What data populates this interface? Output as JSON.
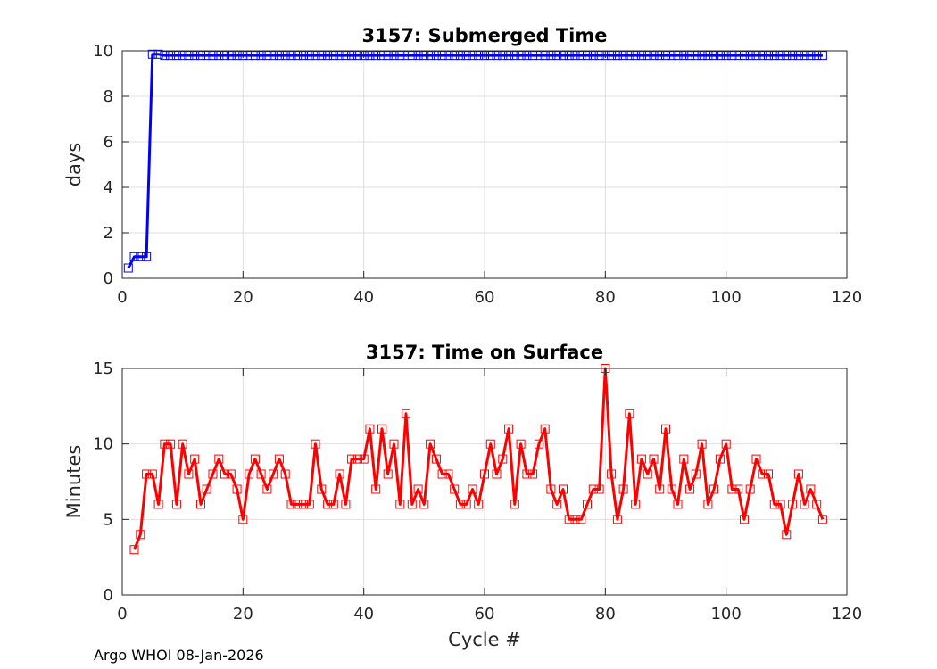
{
  "footer": "Argo WHOI 08-Jan-2026",
  "colors": {
    "top_series": "#0000ff",
    "bottom_series": "#ff0000",
    "grid": "#dfdfdf",
    "axis": "#262626"
  },
  "chart_data": [
    {
      "type": "line",
      "title": "3157: Submerged Time",
      "xlabel": "",
      "ylabel": "days",
      "xlim": [
        0,
        120
      ],
      "ylim": [
        0,
        10
      ],
      "xticks": [
        "0",
        "20",
        "40",
        "60",
        "80",
        "100",
        "120"
      ],
      "yticks": [
        "0",
        "2",
        "4",
        "6",
        "8",
        "10"
      ],
      "grid": true,
      "marker": "square",
      "series": [
        {
          "name": "Submerged Time",
          "x": [
            1,
            2,
            3,
            4,
            5,
            6,
            7,
            8,
            9,
            10,
            11,
            12,
            13,
            14,
            15,
            16,
            17,
            18,
            19,
            20,
            21,
            22,
            23,
            24,
            25,
            26,
            27,
            28,
            29,
            30,
            31,
            32,
            33,
            34,
            35,
            36,
            37,
            38,
            39,
            40,
            41,
            42,
            43,
            44,
            45,
            46,
            47,
            48,
            49,
            50,
            51,
            52,
            53,
            54,
            55,
            56,
            57,
            58,
            59,
            60,
            61,
            62,
            63,
            64,
            65,
            66,
            67,
            68,
            69,
            70,
            71,
            72,
            73,
            74,
            75,
            76,
            77,
            78,
            79,
            80,
            81,
            82,
            83,
            84,
            85,
            86,
            87,
            88,
            89,
            90,
            91,
            92,
            93,
            94,
            95,
            96,
            97,
            98,
            99,
            100,
            101,
            102,
            103,
            104,
            105,
            106,
            107,
            108,
            109,
            110,
            111,
            112,
            113,
            114,
            115,
            116
          ],
          "values": [
            0.45,
            0.95,
            0.95,
            0.95,
            9.85,
            9.85,
            9.8,
            9.8,
            9.8,
            9.8,
            9.8,
            9.8,
            9.8,
            9.8,
            9.8,
            9.8,
            9.8,
            9.8,
            9.8,
            9.8,
            9.8,
            9.8,
            9.8,
            9.8,
            9.8,
            9.8,
            9.8,
            9.8,
            9.8,
            9.8,
            9.8,
            9.8,
            9.8,
            9.8,
            9.8,
            9.8,
            9.8,
            9.8,
            9.8,
            9.8,
            9.8,
            9.8,
            9.8,
            9.8,
            9.8,
            9.8,
            9.8,
            9.8,
            9.8,
            9.8,
            9.8,
            9.8,
            9.8,
            9.8,
            9.8,
            9.8,
            9.8,
            9.8,
            9.8,
            9.8,
            9.8,
            9.8,
            9.8,
            9.8,
            9.8,
            9.8,
            9.8,
            9.8,
            9.8,
            9.8,
            9.8,
            9.8,
            9.8,
            9.8,
            9.8,
            9.8,
            9.8,
            9.8,
            9.8,
            9.8,
            9.8,
            9.8,
            9.8,
            9.8,
            9.8,
            9.8,
            9.8,
            9.8,
            9.8,
            9.8,
            9.8,
            9.8,
            9.8,
            9.8,
            9.8,
            9.8,
            9.8,
            9.8,
            9.8,
            9.8,
            9.8,
            9.8,
            9.8,
            9.8,
            9.8,
            9.8,
            9.8,
            9.8,
            9.8,
            9.8,
            9.8,
            9.8,
            9.8,
            9.8,
            9.8,
            9.8
          ]
        }
      ]
    },
    {
      "type": "line",
      "title": "3157: Time on Surface",
      "xlabel": "Cycle #",
      "ylabel": "Minutes",
      "xlim": [
        0,
        120
      ],
      "ylim": [
        0,
        15
      ],
      "xticks": [
        "0",
        "20",
        "40",
        "60",
        "80",
        "100",
        "120"
      ],
      "yticks": [
        "0",
        "5",
        "10",
        "15"
      ],
      "grid": true,
      "marker": "square",
      "series": [
        {
          "name": "Time on Surface",
          "x": [
            2,
            3,
            4,
            5,
            6,
            7,
            8,
            9,
            10,
            11,
            12,
            13,
            14,
            15,
            16,
            17,
            18,
            19,
            20,
            21,
            22,
            23,
            24,
            25,
            26,
            27,
            28,
            29,
            30,
            31,
            32,
            33,
            34,
            35,
            36,
            37,
            38,
            39,
            40,
            41,
            42,
            43,
            44,
            45,
            46,
            47,
            48,
            49,
            50,
            51,
            52,
            53,
            54,
            55,
            56,
            57,
            58,
            59,
            60,
            61,
            62,
            63,
            64,
            65,
            66,
            67,
            68,
            69,
            70,
            71,
            72,
            73,
            74,
            75,
            76,
            77,
            78,
            79,
            80,
            81,
            82,
            83,
            84,
            85,
            86,
            87,
            88,
            89,
            90,
            91,
            92,
            93,
            94,
            95,
            96,
            97,
            98,
            99,
            100,
            101,
            102,
            103,
            104,
            105,
            106,
            107,
            108,
            109,
            110,
            111,
            112,
            113,
            114,
            115,
            116
          ],
          "values": [
            3,
            4,
            8,
            8,
            6,
            10,
            10,
            6,
            10,
            8,
            9,
            6,
            7,
            8,
            9,
            8,
            8,
            7,
            5,
            8,
            9,
            8,
            7,
            8,
            9,
            8,
            6,
            6,
            6,
            6,
            10,
            7,
            6,
            6,
            8,
            6,
            9,
            9,
            9,
            11,
            7,
            11,
            8,
            10,
            6,
            12,
            6,
            7,
            6,
            10,
            9,
            8,
            8,
            7,
            6,
            6,
            7,
            6,
            8,
            10,
            8,
            9,
            11,
            6,
            10,
            8,
            8,
            10,
            11,
            7,
            6,
            7,
            5,
            5,
            5,
            6,
            7,
            7,
            15,
            8,
            5,
            7,
            12,
            6,
            9,
            8,
            9,
            7,
            11,
            7,
            6,
            9,
            7,
            8,
            10,
            6,
            7,
            9,
            10,
            7,
            7,
            5,
            7,
            9,
            8,
            8,
            6,
            6,
            4,
            6,
            8,
            6,
            7,
            6,
            5
          ]
        }
      ]
    }
  ]
}
